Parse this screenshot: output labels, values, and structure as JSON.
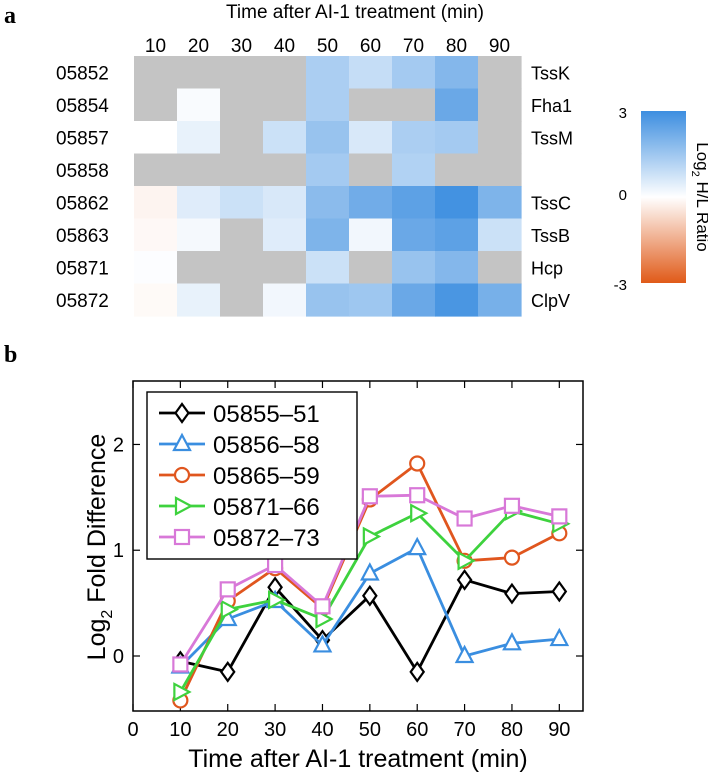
{
  "chart_data": [
    {
      "type": "heatmap",
      "panel_label": "a",
      "title": "Time after AI-1 treatment (min)",
      "columns": [
        "10",
        "20",
        "30",
        "40",
        "50",
        "60",
        "70",
        "80",
        "90"
      ],
      "row_ids": [
        "05852",
        "05854",
        "05857",
        "05858",
        "05862",
        "05863",
        "05871",
        "05872"
      ],
      "row_gene_labels": [
        "TssK",
        "Fha1",
        "TssM",
        "",
        "TssC",
        "TssB",
        "Hcp",
        "ClpV"
      ],
      "missing_color": "#c4c4c4",
      "values": [
        [
          null,
          null,
          null,
          null,
          1.3,
          0.9,
          1.4,
          1.9,
          null
        ],
        [
          null,
          0.1,
          null,
          null,
          1.3,
          null,
          null,
          2.3,
          null
        ],
        [
          0.0,
          0.35,
          null,
          0.8,
          1.6,
          0.6,
          1.3,
          1.4,
          null
        ],
        [
          null,
          null,
          null,
          null,
          1.4,
          null,
          1.2,
          null,
          null
        ],
        [
          -0.2,
          0.5,
          0.8,
          0.6,
          1.8,
          2.2,
          2.5,
          2.9,
          2.0
        ],
        [
          -0.12,
          0.15,
          null,
          0.5,
          2.0,
          0.2,
          2.3,
          2.5,
          0.8
        ],
        [
          0.04,
          null,
          null,
          null,
          0.8,
          null,
          1.6,
          1.9,
          null
        ],
        [
          -0.1,
          0.35,
          null,
          0.2,
          1.6,
          1.5,
          2.3,
          2.8,
          2.1
        ]
      ],
      "colorbar": {
        "label": "Log",
        "label_subscript": "2",
        "label_rest": " H/L Ratio",
        "ticks": [
          "3",
          "0",
          "-3"
        ],
        "range": [
          -3,
          3
        ],
        "colors": {
          "high": "#3d8ee0",
          "mid": "#ffffff",
          "low": "#e05a18"
        }
      }
    },
    {
      "type": "line",
      "panel_label": "b",
      "xlabel": "Time after AI-1 treatment (min)",
      "ylabel": "Log",
      "ylabel_subscript": "2",
      "ylabel_rest": " Fold Difference",
      "xlim": [
        0,
        95
      ],
      "ylim": [
        -0.52,
        2.6
      ],
      "xticks": [
        0,
        10,
        20,
        30,
        40,
        50,
        60,
        70,
        80,
        90
      ],
      "yticks": [
        0,
        1,
        2
      ],
      "legend_position": "top-left",
      "x": [
        10,
        20,
        30,
        40,
        50,
        60,
        70,
        80,
        90
      ],
      "series": [
        {
          "name": "05855–51",
          "color": "#000000",
          "marker": "diamond",
          "values": [
            -0.05,
            -0.15,
            0.65,
            0.15,
            0.57,
            -0.15,
            0.72,
            0.59,
            0.61
          ]
        },
        {
          "name": "05856–58",
          "color": "#3a8ee0",
          "marker": "triangle-up",
          "values": [
            -0.1,
            0.35,
            0.52,
            0.1,
            0.78,
            1.02,
            0.0,
            0.12,
            0.16
          ]
        },
        {
          "name": "05865–59",
          "color": "#e0561e",
          "marker": "circle",
          "values": [
            -0.42,
            0.52,
            0.83,
            0.45,
            1.48,
            1.82,
            0.9,
            0.93,
            1.16
          ]
        },
        {
          "name": "05871–66",
          "color": "#3ed23e",
          "marker": "triangle-right",
          "values": [
            -0.34,
            0.44,
            0.53,
            0.35,
            1.13,
            1.35,
            0.9,
            1.37,
            1.25
          ]
        },
        {
          "name": "05872–73",
          "color": "#d878d8",
          "marker": "square",
          "values": [
            -0.08,
            0.63,
            0.86,
            0.47,
            1.51,
            1.52,
            1.3,
            1.42,
            1.32
          ]
        }
      ]
    }
  ]
}
